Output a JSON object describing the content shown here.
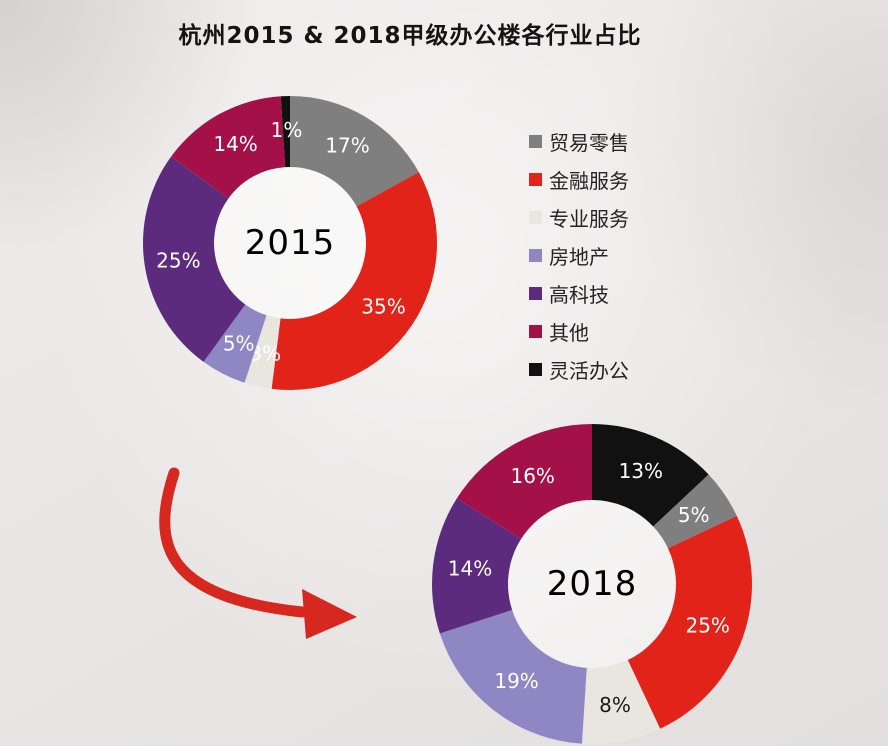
{
  "title": "杭州2015 & 2018甲级办公楼各行业占比",
  "arrow_color": "#d6281e",
  "legend": [
    {
      "label": "贸易零售",
      "color": "#7f7f7f"
    },
    {
      "label": "金融服务",
      "color": "#e2231a"
    },
    {
      "label": "专业服务",
      "color": "#e9e5df"
    },
    {
      "label": "房地产",
      "color": "#8e87c3"
    },
    {
      "label": "高科技",
      "color": "#5d2b7e"
    },
    {
      "label": "其他",
      "color": "#a31148"
    },
    {
      "label": "灵活办公",
      "color": "#111111"
    }
  ],
  "chart_data": [
    {
      "type": "pie",
      "name": "2015",
      "center_label": "2015",
      "unit": "%",
      "legend_position": "right",
      "slices": [
        {
          "label": "贸易零售",
          "value": 17,
          "display": "17%",
          "color": "#7f7f7f",
          "label_color": "#ffffff"
        },
        {
          "label": "金融服务",
          "value": 35,
          "display": "35%",
          "color": "#e2231a",
          "label_color": "#ffffff"
        },
        {
          "label": "专业服务",
          "value": 3,
          "display": "3%",
          "color": "#e9e5df",
          "label_color": "#ffffff"
        },
        {
          "label": "房地产",
          "value": 5,
          "display": "5%",
          "color": "#8e87c3",
          "label_color": "#ffffff"
        },
        {
          "label": "高科技",
          "value": 25,
          "display": "25%",
          "color": "#5d2b7e",
          "label_color": "#ffffff"
        },
        {
          "label": "其他",
          "value": 14,
          "display": "14%",
          "color": "#a31148",
          "label_color": "#ffffff"
        },
        {
          "label": "灵活办公",
          "value": 1,
          "display": "1%",
          "color": "#111111",
          "label_color": "#ffffff"
        }
      ]
    },
    {
      "type": "pie",
      "name": "2018",
      "center_label": "2018",
      "unit": "%",
      "slices": [
        {
          "label": "灵活办公",
          "value": 13,
          "display": "13%",
          "color": "#111111",
          "label_color": "#ffffff"
        },
        {
          "label": "贸易零售",
          "value": 5,
          "display": "5%",
          "color": "#7f7f7f",
          "label_color": "#ffffff"
        },
        {
          "label": "金融服务",
          "value": 25,
          "display": "25%",
          "color": "#e2231a",
          "label_color": "#ffffff"
        },
        {
          "label": "专业服务",
          "value": 8,
          "display": "8%",
          "color": "#e9e5df",
          "label_color": "#1a1a1a"
        },
        {
          "label": "房地产",
          "value": 19,
          "display": "19%",
          "color": "#8e87c3",
          "label_color": "#ffffff"
        },
        {
          "label": "高科技",
          "value": 14,
          "display": "14%",
          "color": "#5d2b7e",
          "label_color": "#ffffff"
        },
        {
          "label": "其他",
          "value": 16,
          "display": "16%",
          "color": "#a31148",
          "label_color": "#ffffff"
        }
      ]
    }
  ]
}
